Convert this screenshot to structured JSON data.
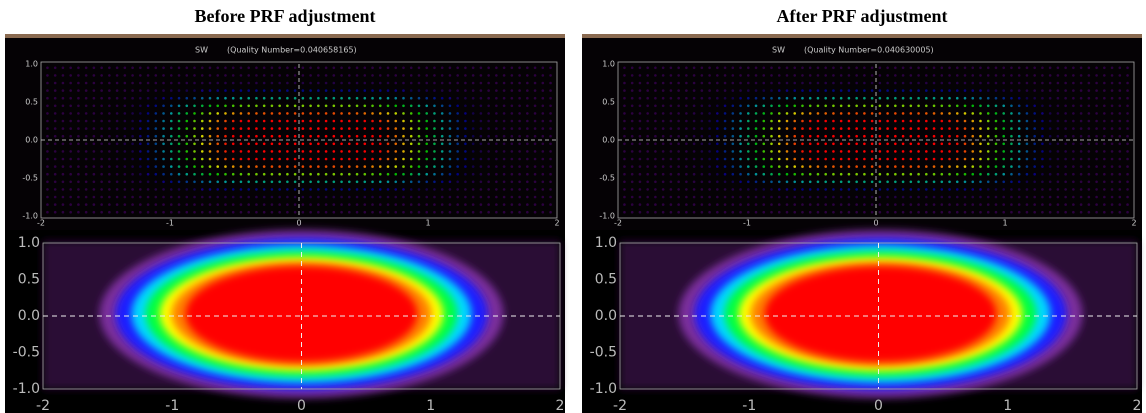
{
  "panels": [
    {
      "title": "Before PRF adjustment",
      "plot_label": "SW",
      "quality": "(Quality Number=0.040658165)",
      "top": {
        "yticks": [
          "1.0",
          "0.5",
          "0.0",
          "-0.5",
          "-1.0"
        ],
        "xticks": [
          "-2",
          "-1",
          "0",
          "1",
          "2"
        ]
      },
      "bottom": {
        "yticks": [
          "1.0",
          "0.5",
          "0.0",
          "-0.5",
          "-1.0"
        ],
        "xticks": [
          "-2",
          "-1",
          "0",
          "1",
          "2"
        ]
      }
    },
    {
      "title": "After PRF adjustment",
      "plot_label": "SW",
      "quality": "(Quality Number=0.040630005)",
      "top": {
        "yticks": [
          "1.0",
          "0.5",
          "0.0",
          "-0.5",
          "-1.0"
        ],
        "xticks": [
          "-2",
          "-1",
          "0",
          "1",
          "2"
        ]
      },
      "bottom": {
        "yticks": [
          "1.0",
          "0.5",
          "0.0",
          "-0.5",
          "-1.0"
        ],
        "xticks": [
          "-2",
          "-1",
          "0",
          "1",
          "2"
        ]
      }
    }
  ]
}
